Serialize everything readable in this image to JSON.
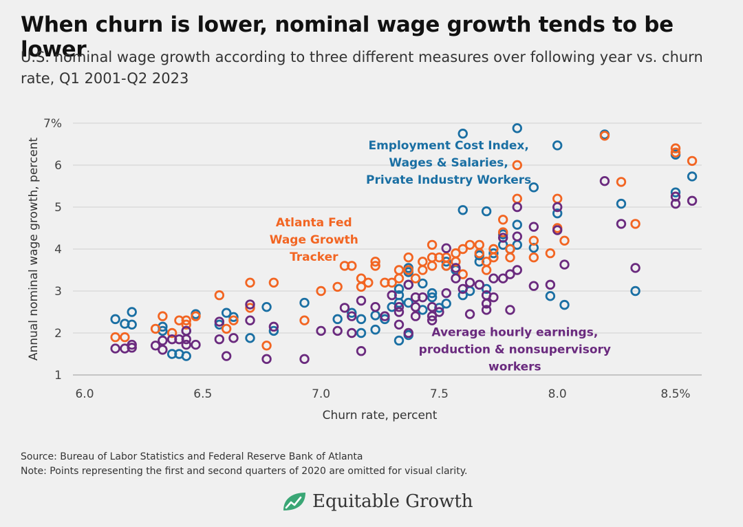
{
  "title": "When churn is lower, nominal wage growth tends to be lower",
  "subtitle": "U.S. nominal wage growth according to three different measures over following year vs. churn rate, Q1 2001-Q2 2023",
  "source": "Source: Bureau of Labor Statistics and Federal Reserve Bank of Atlanta",
  "note": "Note: Points representing the first and second quarters of 2020 are omitted for visual clarity.",
  "brand": {
    "name": "Equitable Growth",
    "logo_icon": "growth-leaf-icon",
    "logo_color": "#3aa675"
  },
  "chart_data": {
    "type": "scatter",
    "xlabel": "Churn rate, percent",
    "ylabel": "Annual nominal wage growth, percent",
    "xlim": [
      6.0,
      8.6
    ],
    "ylim": [
      1,
      7
    ],
    "xticks": [
      6.0,
      6.5,
      7.0,
      7.5,
      8.0,
      8.5
    ],
    "xtick_labels": [
      "6.0",
      "6.5",
      "7.0",
      "7.5",
      "8.0",
      "8.5%"
    ],
    "yticks": [
      1,
      2,
      3,
      4,
      5,
      6,
      7
    ],
    "ytick_labels": [
      "1",
      "2",
      "3",
      "4",
      "5",
      "6",
      "7%"
    ],
    "grid": "horizontal",
    "marker": "hollow-circle",
    "series": [
      {
        "name": "Employment Cost Index, Wages & Salaries, Private Industry Workers",
        "label_lines": [
          "Employment Cost Index,",
          "Wages & Salaries,",
          "Private Industry Workers"
        ],
        "label_at": [
          7.54,
          6.38
        ],
        "color": "#1a6fa3",
        "points": [
          [
            6.13,
            2.33
          ],
          [
            6.17,
            2.22
          ],
          [
            6.2,
            2.5
          ],
          [
            6.2,
            2.2
          ],
          [
            6.33,
            2.15
          ],
          [
            6.33,
            2.05
          ],
          [
            6.37,
            1.5
          ],
          [
            6.4,
            1.5
          ],
          [
            6.43,
            1.45
          ],
          [
            6.43,
            2.05
          ],
          [
            6.47,
            2.45
          ],
          [
            6.57,
            2.2
          ],
          [
            6.6,
            2.48
          ],
          [
            6.63,
            2.38
          ],
          [
            6.7,
            1.88
          ],
          [
            6.77,
            2.62
          ],
          [
            6.8,
            2.05
          ],
          [
            6.93,
            2.72
          ],
          [
            7.07,
            2.33
          ],
          [
            7.13,
            2.48
          ],
          [
            7.17,
            2.0
          ],
          [
            7.17,
            2.33
          ],
          [
            7.23,
            2.08
          ],
          [
            7.23,
            2.42
          ],
          [
            7.27,
            2.33
          ],
          [
            7.3,
            2.62
          ],
          [
            7.33,
            2.72
          ],
          [
            7.33,
            2.9
          ],
          [
            7.33,
            3.05
          ],
          [
            7.37,
            2.72
          ],
          [
            7.37,
            3.15
          ],
          [
            7.37,
            3.45
          ],
          [
            7.37,
            3.55
          ],
          [
            7.33,
            1.82
          ],
          [
            7.37,
            1.95
          ],
          [
            7.43,
            2.55
          ],
          [
            7.43,
            3.18
          ],
          [
            7.47,
            2.85
          ],
          [
            7.47,
            2.95
          ],
          [
            7.5,
            2.6
          ],
          [
            7.53,
            2.7
          ],
          [
            7.53,
            3.6
          ],
          [
            7.53,
            3.7
          ],
          [
            7.57,
            3.5
          ],
          [
            7.6,
            2.9
          ],
          [
            7.6,
            4.93
          ],
          [
            7.6,
            6.75
          ],
          [
            7.63,
            3.0
          ],
          [
            7.67,
            3.7
          ],
          [
            7.67,
            3.85
          ],
          [
            7.7,
            3.05
          ],
          [
            7.7,
            4.9
          ],
          [
            7.73,
            3.9
          ],
          [
            7.77,
            4.1
          ],
          [
            7.77,
            4.35
          ],
          [
            7.8,
            4.0
          ],
          [
            7.83,
            4.1
          ],
          [
            7.83,
            4.58
          ],
          [
            7.83,
            6.88
          ],
          [
            7.9,
            4.03
          ],
          [
            7.9,
            5.47
          ],
          [
            7.97,
            2.88
          ],
          [
            8.0,
            4.85
          ],
          [
            8.0,
            6.47
          ],
          [
            8.03,
            2.67
          ],
          [
            8.2,
            6.73
          ],
          [
            8.27,
            5.08
          ],
          [
            8.33,
            3.0
          ],
          [
            8.5,
            5.35
          ],
          [
            8.5,
            6.25
          ],
          [
            8.57,
            5.73
          ]
        ]
      },
      {
        "name": "Atlanta Fed Wage Growth Tracker",
        "label_lines": [
          "Atlanta Fed",
          "Wage Growth",
          "Tracker"
        ],
        "label_at": [
          6.97,
          4.54
        ],
        "color": "#f26522",
        "points": [
          [
            6.13,
            1.9
          ],
          [
            6.17,
            1.9
          ],
          [
            6.3,
            2.1
          ],
          [
            6.33,
            2.4
          ],
          [
            6.37,
            2.0
          ],
          [
            6.4,
            2.3
          ],
          [
            6.43,
            2.2
          ],
          [
            6.43,
            2.3
          ],
          [
            6.47,
            2.4
          ],
          [
            6.57,
            2.9
          ],
          [
            6.6,
            2.1
          ],
          [
            6.63,
            2.3
          ],
          [
            6.7,
            2.6
          ],
          [
            6.7,
            3.2
          ],
          [
            6.77,
            1.7
          ],
          [
            6.8,
            3.2
          ],
          [
            6.93,
            2.3
          ],
          [
            7.0,
            3.0
          ],
          [
            7.07,
            3.1
          ],
          [
            7.1,
            3.6
          ],
          [
            7.13,
            3.6
          ],
          [
            7.17,
            3.1
          ],
          [
            7.17,
            3.3
          ],
          [
            7.2,
            3.2
          ],
          [
            7.23,
            3.7
          ],
          [
            7.23,
            3.6
          ],
          [
            7.27,
            3.2
          ],
          [
            7.3,
            3.2
          ],
          [
            7.33,
            3.3
          ],
          [
            7.33,
            3.5
          ],
          [
            7.37,
            3.5
          ],
          [
            7.37,
            3.8
          ],
          [
            7.4,
            3.3
          ],
          [
            7.43,
            3.5
          ],
          [
            7.43,
            3.7
          ],
          [
            7.47,
            3.6
          ],
          [
            7.47,
            3.8
          ],
          [
            7.47,
            4.1
          ],
          [
            7.5,
            3.8
          ],
          [
            7.53,
            3.6
          ],
          [
            7.53,
            3.8
          ],
          [
            7.57,
            3.7
          ],
          [
            7.57,
            3.9
          ],
          [
            7.6,
            3.4
          ],
          [
            7.6,
            4.0
          ],
          [
            7.63,
            4.1
          ],
          [
            7.67,
            3.9
          ],
          [
            7.67,
            4.1
          ],
          [
            7.7,
            3.5
          ],
          [
            7.7,
            3.7
          ],
          [
            7.73,
            3.8
          ],
          [
            7.73,
            4.0
          ],
          [
            7.77,
            4.7
          ],
          [
            7.77,
            4.4
          ],
          [
            7.8,
            3.8
          ],
          [
            7.8,
            4.0
          ],
          [
            7.83,
            5.2
          ],
          [
            7.83,
            6.0
          ],
          [
            7.9,
            3.8
          ],
          [
            7.9,
            4.2
          ],
          [
            7.97,
            3.9
          ],
          [
            8.0,
            4.5
          ],
          [
            8.0,
            5.2
          ],
          [
            8.03,
            4.2
          ],
          [
            8.2,
            6.7
          ],
          [
            8.27,
            5.6
          ],
          [
            8.33,
            4.6
          ],
          [
            8.5,
            6.3
          ],
          [
            8.5,
            6.4
          ],
          [
            8.57,
            6.1
          ]
        ]
      },
      {
        "name": "Average hourly earnings, production & nonsupervisory workers",
        "label_lines": [
          "Average hourly earnings,",
          "production & nonsupervisory",
          "workers"
        ],
        "label_at": [
          7.82,
          1.93
        ],
        "color": "#6a2a7e",
        "points": [
          [
            6.13,
            1.63
          ],
          [
            6.17,
            1.63
          ],
          [
            6.2,
            1.65
          ],
          [
            6.2,
            1.72
          ],
          [
            6.3,
            1.7
          ],
          [
            6.33,
            1.6
          ],
          [
            6.33,
            1.82
          ],
          [
            6.37,
            1.85
          ],
          [
            6.4,
            1.85
          ],
          [
            6.43,
            1.72
          ],
          [
            6.43,
            1.85
          ],
          [
            6.43,
            2.05
          ],
          [
            6.47,
            1.72
          ],
          [
            6.57,
            1.85
          ],
          [
            6.57,
            2.27
          ],
          [
            6.6,
            1.45
          ],
          [
            6.63,
            1.88
          ],
          [
            6.7,
            2.3
          ],
          [
            6.7,
            2.68
          ],
          [
            6.77,
            1.38
          ],
          [
            6.8,
            2.15
          ],
          [
            6.93,
            1.38
          ],
          [
            7.0,
            2.05
          ],
          [
            7.07,
            2.05
          ],
          [
            7.1,
            2.6
          ],
          [
            7.13,
            2.0
          ],
          [
            7.13,
            2.4
          ],
          [
            7.17,
            1.57
          ],
          [
            7.17,
            2.77
          ],
          [
            7.23,
            2.62
          ],
          [
            7.27,
            2.4
          ],
          [
            7.3,
            2.9
          ],
          [
            7.33,
            2.2
          ],
          [
            7.33,
            2.5
          ],
          [
            7.33,
            2.62
          ],
          [
            7.37,
            2.0
          ],
          [
            7.37,
            3.15
          ],
          [
            7.4,
            2.4
          ],
          [
            7.4,
            2.62
          ],
          [
            7.4,
            2.85
          ],
          [
            7.43,
            2.85
          ],
          [
            7.47,
            2.3
          ],
          [
            7.47,
            2.4
          ],
          [
            7.47,
            2.62
          ],
          [
            7.5,
            2.5
          ],
          [
            7.53,
            2.95
          ],
          [
            7.53,
            4.02
          ],
          [
            7.57,
            3.3
          ],
          [
            7.57,
            3.55
          ],
          [
            7.6,
            3.05
          ],
          [
            7.63,
            2.45
          ],
          [
            7.63,
            3.2
          ],
          [
            7.67,
            3.15
          ],
          [
            7.7,
            2.55
          ],
          [
            7.7,
            2.7
          ],
          [
            7.7,
            2.9
          ],
          [
            7.73,
            2.85
          ],
          [
            7.73,
            3.3
          ],
          [
            7.77,
            3.3
          ],
          [
            7.77,
            4.27
          ],
          [
            7.8,
            2.55
          ],
          [
            7.8,
            3.4
          ],
          [
            7.83,
            3.5
          ],
          [
            7.83,
            4.3
          ],
          [
            7.83,
            5.0
          ],
          [
            7.9,
            3.12
          ],
          [
            7.9,
            4.53
          ],
          [
            7.97,
            3.15
          ],
          [
            8.0,
            4.45
          ],
          [
            8.0,
            5.0
          ],
          [
            8.03,
            3.63
          ],
          [
            8.2,
            5.62
          ],
          [
            8.27,
            4.6
          ],
          [
            8.33,
            3.55
          ],
          [
            8.5,
            5.08
          ],
          [
            8.5,
            5.25
          ],
          [
            8.57,
            5.15
          ]
        ]
      }
    ]
  }
}
